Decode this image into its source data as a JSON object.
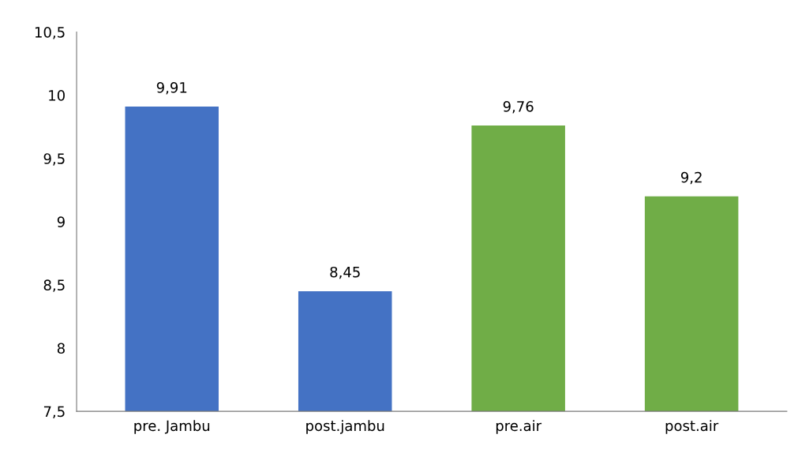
{
  "chart_data": {
    "type": "bar",
    "categories": [
      "pre. Jambu",
      "post.jambu",
      "pre.air",
      "post.air"
    ],
    "values": [
      9.91,
      8.45,
      9.76,
      9.2
    ],
    "colors": [
      "#4472c4",
      "#4472c4",
      "#70ad47",
      "#70ad47"
    ],
    "value_labels": [
      "9,91",
      "8,45",
      "9,76",
      "9,2"
    ],
    "ylim": [
      7.5,
      10.5
    ],
    "yticks": [
      {
        "value": 7.5,
        "label": "7,5"
      },
      {
        "value": 8,
        "label": "8"
      },
      {
        "value": 8.5,
        "label": "8,5"
      },
      {
        "value": 9,
        "label": "9"
      },
      {
        "value": 9.5,
        "label": "9,5"
      },
      {
        "value": 10,
        "label": "10"
      },
      {
        "value": 10.5,
        "label": "10,5"
      }
    ],
    "grid": false,
    "legend": false
  }
}
